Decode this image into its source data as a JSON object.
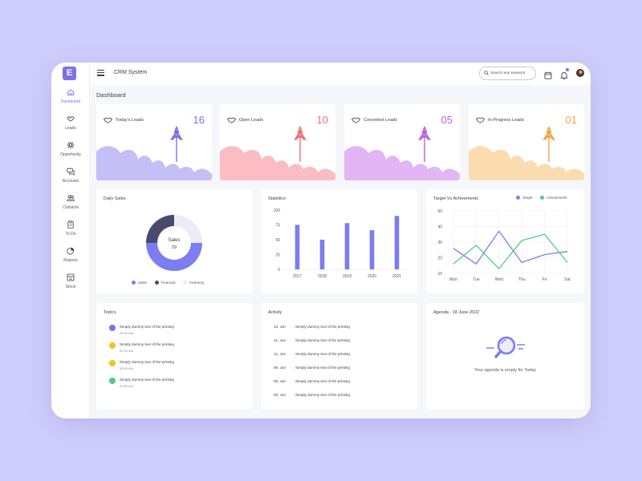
{
  "app": {
    "title": "CRM System",
    "logo": "E"
  },
  "search": {
    "placeholder": "Search any keyword"
  },
  "sidebar": {
    "items": [
      {
        "label": "Dashboard",
        "icon": "home-icon",
        "active": true
      },
      {
        "label": "Leads",
        "icon": "handshake-icon"
      },
      {
        "label": "Opportunity",
        "icon": "sparkle-icon"
      },
      {
        "label": "Accounts",
        "icon": "chat-icon"
      },
      {
        "label": "Contacts",
        "icon": "users-icon"
      },
      {
        "label": "To Do",
        "icon": "clipboard-icon"
      },
      {
        "label": "Reports",
        "icon": "pie-chart-icon"
      },
      {
        "label": "Stock",
        "icon": "box-icon"
      }
    ]
  },
  "page": {
    "title": "Dashboard"
  },
  "stats": [
    {
      "title": "Today's Leads",
      "value": "16",
      "color": "#7b72ea",
      "fill": "#c4c0f6"
    },
    {
      "title": "Open Leads",
      "value": "10",
      "color": "#f0707a",
      "fill": "#fbbcc3"
    },
    {
      "title": "Converted Leads",
      "value": "05",
      "color": "#bd62e0",
      "fill": "#e2b5f5"
    },
    {
      "title": "In-Progress Leads",
      "value": "01",
      "color": "#f4a44e",
      "fill": "#fbdcb0"
    }
  ],
  "daily_sales": {
    "title": "Daily Sales",
    "center_label": "Sales",
    "center_value": "29",
    "legend": [
      "Sales",
      "Financial",
      "Inventory"
    ],
    "colors": [
      "#7b7df0",
      "#484a6e",
      "#ececf8"
    ]
  },
  "charts": {
    "statistics": {
      "title": "Statistics"
    },
    "target_vs_achievements": {
      "title": "Target Vs Achivements",
      "legend": [
        "Target",
        "Achivements"
      ]
    }
  },
  "chart_data": [
    {
      "type": "pie",
      "title": "Daily Sales",
      "categories": [
        "Sales",
        "Financial",
        "Inventory"
      ],
      "values": [
        50,
        25,
        25
      ],
      "colors": [
        "#7b7df0",
        "#484a6e",
        "#ececf8"
      ]
    },
    {
      "type": "bar",
      "title": "Statistics",
      "categories": [
        "2017",
        "2018",
        "2019",
        "2020",
        "2021"
      ],
      "values": [
        75,
        50,
        78,
        66,
        90
      ],
      "ylim": [
        0,
        100
      ],
      "yticks": [
        0,
        25,
        50,
        75,
        100
      ],
      "color": "#7b7df0"
    },
    {
      "type": "line",
      "title": "Target Vs Achivements",
      "categories": [
        "Mon",
        "Tue",
        "Wed",
        "Thu",
        "Fri",
        "Sat"
      ],
      "series": [
        {
          "name": "Target",
          "values": [
            26,
            16,
            37,
            17,
            22,
            24
          ],
          "color": "#7b7df0"
        },
        {
          "name": "Achivements",
          "values": [
            16,
            28,
            13,
            31,
            35,
            17
          ],
          "color": "#4ccf82"
        }
      ],
      "ylim": [
        10,
        50
      ],
      "yticks": [
        10,
        20,
        30,
        40,
        50
      ],
      "grid": true,
      "legend_position": "top-right"
    }
  ],
  "todos": {
    "title": "Todo's",
    "items": [
      {
        "text": "Simply dummy text of the printing",
        "time": "09:30 AM",
        "color": "#7b72ea",
        "done": true
      },
      {
        "text": "Simply dummy text of the printing",
        "time": "09:30 AM",
        "color": "#f6c219",
        "done": false
      },
      {
        "text": "Simply dummy text of the printing",
        "time": "09:30 AM",
        "color": "#f6c219",
        "done": false
      },
      {
        "text": "Simply dummy text of the printing",
        "time": "09:30 AM",
        "color": "#4ccf82",
        "done": false
      }
    ]
  },
  "activity": {
    "title": "Activity",
    "items": [
      {
        "date": "13, Jun",
        "text": "Simply dummy text of the printing"
      },
      {
        "date": "11, Jun",
        "text": "Simply dummy text of the printing"
      },
      {
        "date": "11, Jun",
        "text": "Simply dummy text of the printing"
      },
      {
        "date": "09, Jun",
        "text": "Simply dummy text of the printing"
      },
      {
        "date": "09, Jun",
        "text": "Simply dummy text of the printing"
      },
      {
        "date": "09, Jun",
        "text": "Simply dummy text of the printing"
      }
    ]
  },
  "agenda": {
    "title": "Agenda - 18 June 2022",
    "empty_text": "Your agenda is empty for Today"
  }
}
